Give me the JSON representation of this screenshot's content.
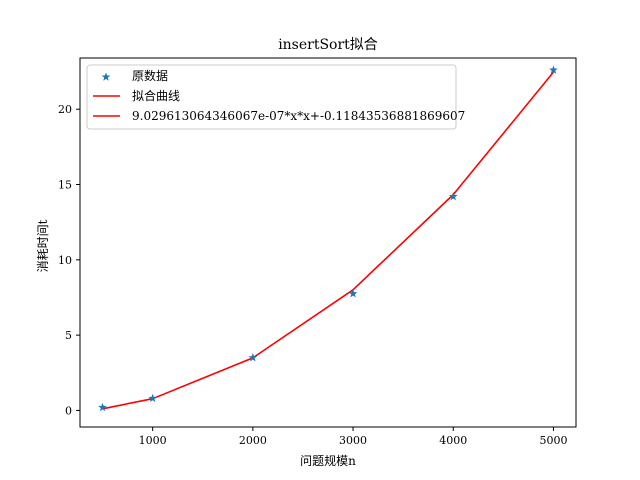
{
  "chart_data": {
    "type": "line",
    "title": "insertSort拟合",
    "xlabel": "问题规模n",
    "ylabel": "消耗时间t",
    "xlim": [
      275,
      5225
    ],
    "ylim": [
      -1.1,
      23.4
    ],
    "xticks": [
      1000,
      2000,
      3000,
      4000,
      5000
    ],
    "yticks": [
      0,
      5,
      10,
      15,
      20
    ],
    "grid": false,
    "legend_position": "upper-left",
    "colors": {
      "points": "#1f77b4",
      "fit_line": "#ff0000",
      "axes": "#000000"
    },
    "legend": {
      "items": [
        {
          "label": "原数据",
          "marker": "star-icon"
        },
        {
          "label": "拟合曲线",
          "marker": "line"
        },
        {
          "label": "9.029613064346067e-07*x*x+-0.11843536881869607",
          "marker": "line"
        }
      ]
    },
    "series": [
      {
        "name": "原数据",
        "kind": "scatter",
        "marker": "star",
        "x": [
          500,
          1000,
          2000,
          3000,
          4000,
          5000
        ],
        "y": [
          0.2,
          0.8,
          3.5,
          7.75,
          14.2,
          22.6
        ]
      },
      {
        "name": "拟合曲线",
        "kind": "line",
        "x": [
          500,
          1000,
          2000,
          3000,
          4000,
          5000
        ],
        "y": [
          0.11,
          0.78,
          3.49,
          8.01,
          14.33,
          22.46
        ]
      }
    ]
  }
}
